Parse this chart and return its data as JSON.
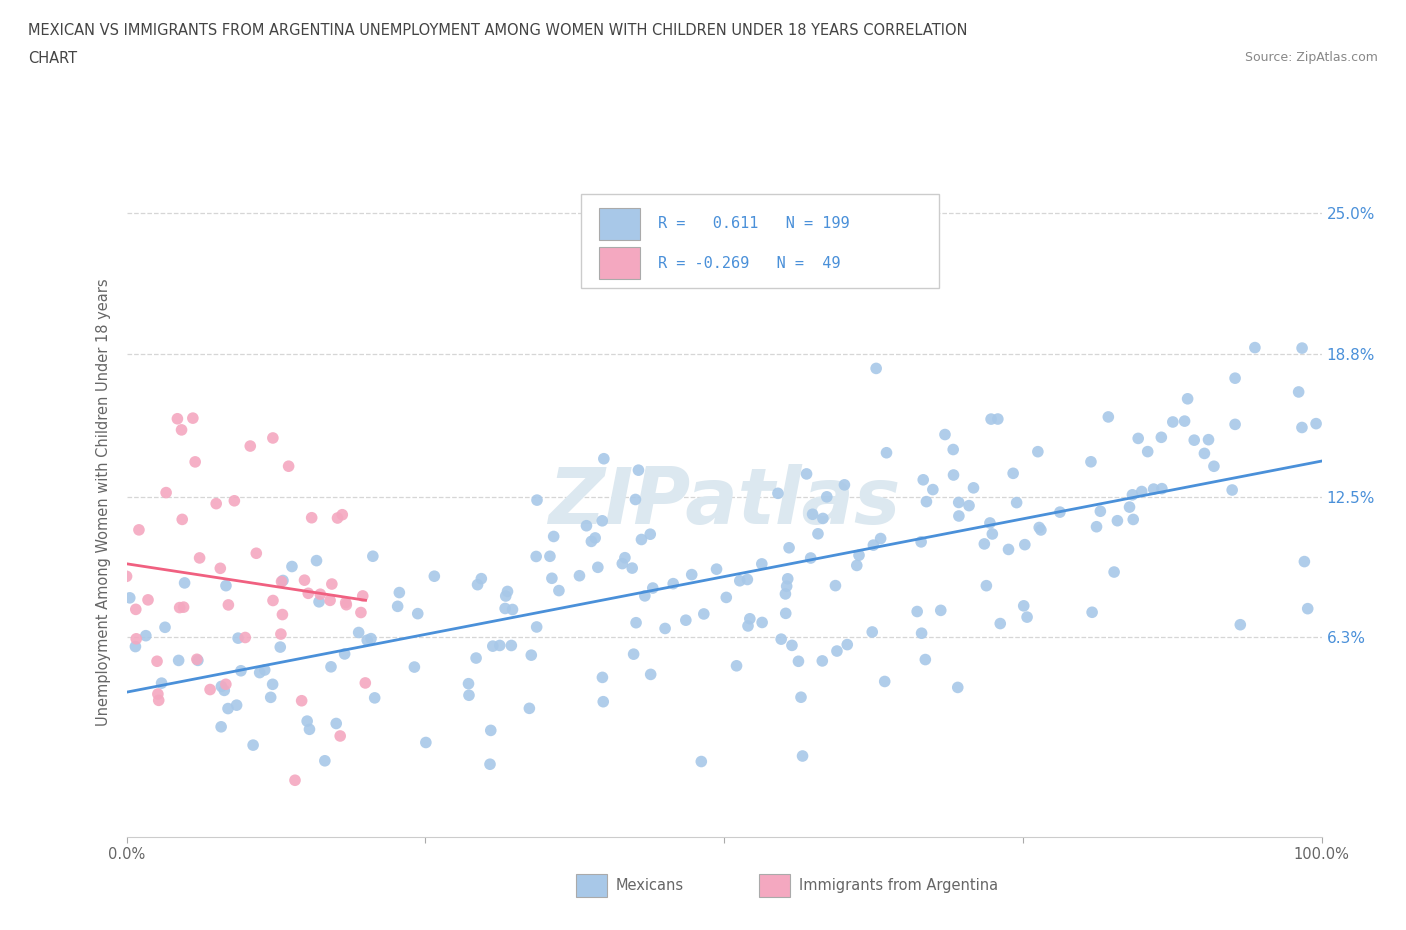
{
  "title_line1": "MEXICAN VS IMMIGRANTS FROM ARGENTINA UNEMPLOYMENT AMONG WOMEN WITH CHILDREN UNDER 18 YEARS CORRELATION",
  "title_line2": "CHART",
  "source": "Source: ZipAtlas.com",
  "ylabel": "Unemployment Among Women with Children Under 18 years",
  "xmin": 0.0,
  "xmax": 100.0,
  "ymin": -2.5,
  "ymax": 27.0,
  "blue_color": "#a8c8e8",
  "pink_color": "#f4a8c0",
  "trend_blue": "#4a90d9",
  "trend_pink": "#f06080",
  "watermark_color": "#dce8f0",
  "background_color": "#ffffff",
  "grid_color": "#cccccc",
  "title_color": "#444444",
  "tick_color": "#4a90d9",
  "label_color": "#666666"
}
